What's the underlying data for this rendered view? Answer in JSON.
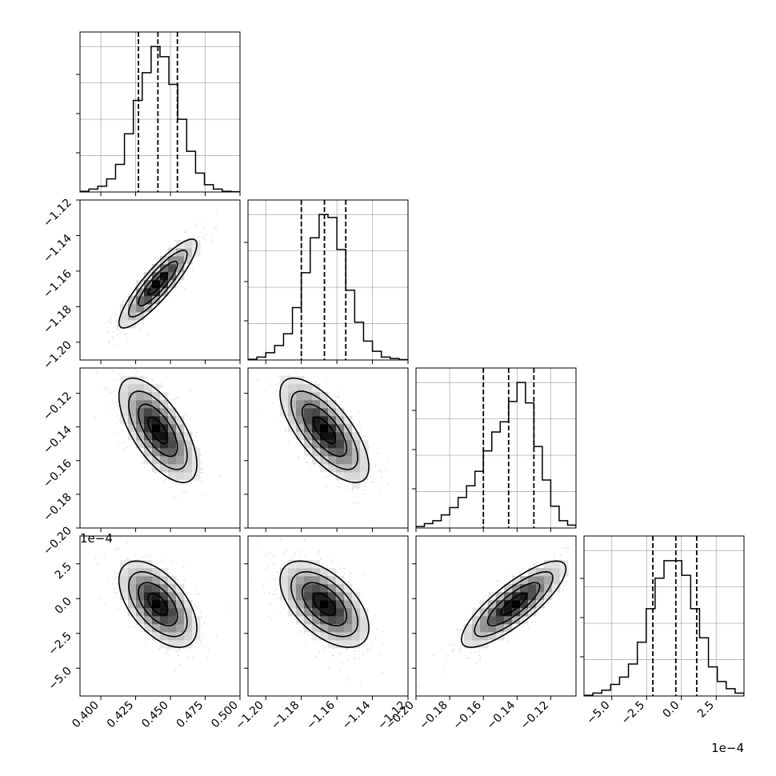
{
  "chart_data": {
    "type": "corner",
    "dims": 4,
    "axis_ranges": [
      [
        0.385,
        0.5
      ],
      [
        -1.21,
        -1.12
      ],
      [
        -0.2,
        -0.105
      ],
      [
        -7.0,
        4.5
      ]
    ],
    "tick_values": [
      [
        0.4,
        0.425,
        0.45,
        0.475,
        0.5
      ],
      [
        -1.2,
        -1.18,
        -1.16,
        -1.14,
        -1.12
      ],
      [
        -0.2,
        -0.18,
        -0.16,
        -0.14,
        -0.12
      ],
      [
        -5.0,
        -2.5,
        0.0,
        2.5
      ]
    ],
    "tick_labels": [
      [
        "0.400",
        "0.425",
        "0.450",
        "0.475",
        "0.500"
      ],
      [
        "−1.20",
        "−1.18",
        "−1.16",
        "−1.14",
        "−1.12"
      ],
      [
        "−0.20",
        "−0.18",
        "−0.16",
        "−0.14",
        "−0.12"
      ],
      [
        "−5.0",
        "−2.5",
        "0.0",
        "2.5"
      ]
    ],
    "offset_text": "1e−4",
    "means": [
      0.441,
      -1.167,
      -0.142,
      -0.4
    ],
    "sigmas": [
      0.014,
      0.0125,
      0.0155,
      1.55
    ],
    "correlations": [
      [
        1,
        0.88,
        -0.65,
        -0.55
      ],
      [
        0.88,
        1,
        -0.7,
        -0.55
      ],
      [
        -0.65,
        -0.7,
        1,
        0.82
      ],
      [
        -0.55,
        -0.55,
        0.82,
        1
      ]
    ],
    "quantiles": [
      [
        0.427,
        0.441,
        0.455
      ],
      [
        -1.18,
        -1.167,
        -1.155
      ],
      [
        -0.16,
        -0.145,
        -0.13
      ],
      [
        -2.05,
        -0.4,
        1.1
      ]
    ],
    "histograms": [
      [
        0.5,
        2,
        4,
        9,
        19,
        40,
        63,
        82,
        100,
        93,
        74,
        50,
        28,
        13,
        5,
        2,
        0.5,
        0.2
      ],
      [
        0.5,
        2,
        5,
        10,
        18,
        36,
        60,
        84,
        100,
        98,
        76,
        48,
        26,
        13,
        6,
        2,
        1,
        0.3
      ],
      [
        1,
        3,
        5,
        9,
        14,
        21,
        29,
        39,
        53,
        66,
        73,
        87,
        100,
        86,
        56,
        33,
        15,
        5,
        2
      ],
      [
        0.5,
        2,
        4,
        8,
        13,
        22,
        37,
        60,
        81,
        93,
        93,
        83,
        60,
        40,
        20,
        10,
        5,
        2
      ]
    ],
    "hist_ylim": [
      0,
      1.1
    ],
    "grid": true
  }
}
